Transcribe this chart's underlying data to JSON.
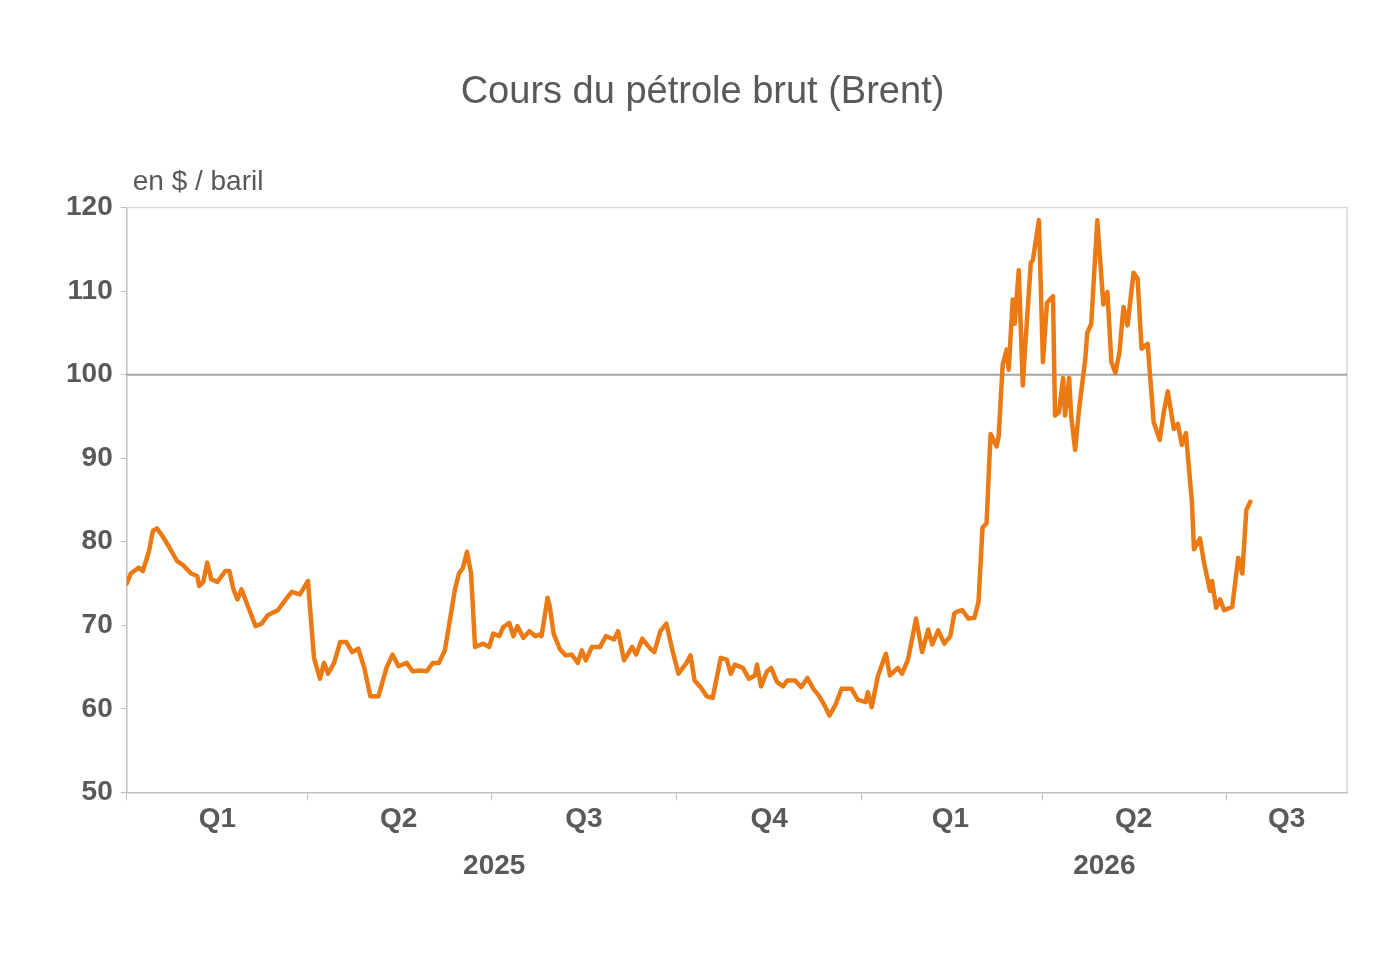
{
  "chart_data": {
    "type": "line",
    "title": "Cours du pétrole brut (Brent)",
    "ylabel": "en $ / baril",
    "color": "#ec7a14",
    "legend": false,
    "xlim": [
      "2025-01-01",
      "2026-08-30"
    ],
    "ylim": [
      50,
      120
    ],
    "yticks": [
      50,
      60,
      70,
      80,
      90,
      100,
      110,
      120
    ],
    "xticks": [
      {
        "value": "2025-01-01",
        "label": null
      },
      {
        "value": "2025-02-15",
        "label": "Q1"
      },
      {
        "value": "2025-04-01",
        "label": null
      },
      {
        "value": "2025-05-16",
        "label": "Q2"
      },
      {
        "value": "2025-07-01",
        "label": null
      },
      {
        "value": "2025-08-16",
        "label": "Q3"
      },
      {
        "value": "2025-10-01",
        "label": null
      },
      {
        "value": "2025-11-16",
        "label": "Q4"
      },
      {
        "value": "2026-01-01",
        "label": null
      },
      {
        "value": "2026-02-14",
        "label": "Q1"
      },
      {
        "value": "2026-04-01",
        "label": null
      },
      {
        "value": "2026-05-16",
        "label": "Q2"
      },
      {
        "value": "2026-07-01",
        "label": null
      },
      {
        "value": "2026-07-31",
        "label": "Q3"
      }
    ],
    "annotations": [
      "2025",
      "2026"
    ],
    "ref_lines": [
      {
        "axis": "y",
        "value": 100,
        "color": "#a6a6a6"
      }
    ],
    "x": [
      "2025-01-01",
      "2025-01-03",
      "2025-01-07",
      "2025-01-09",
      "2025-01-12",
      "2025-01-14",
      "2025-01-16",
      "2025-01-19",
      "2025-01-22",
      "2025-01-26",
      "2025-01-29",
      "2025-02-02",
      "2025-02-05",
      "2025-02-06",
      "2025-02-08",
      "2025-02-10",
      "2025-02-12",
      "2025-02-15",
      "2025-02-19",
      "2025-02-21",
      "2025-02-23",
      "2025-02-25",
      "2025-02-27",
      "2025-03-02",
      "2025-03-06",
      "2025-03-09",
      "2025-03-12",
      "2025-03-17",
      "2025-03-21",
      "2025-03-24",
      "2025-03-28",
      "2025-04-01",
      "2025-04-04",
      "2025-04-07",
      "2025-04-09",
      "2025-04-11",
      "2025-04-14",
      "2025-04-17",
      "2025-04-20",
      "2025-04-23",
      "2025-04-26",
      "2025-04-29",
      "2025-05-02",
      "2025-05-06",
      "2025-05-10",
      "2025-05-13",
      "2025-05-16",
      "2025-05-20",
      "2025-05-23",
      "2025-05-27",
      "2025-05-30",
      "2025-06-02",
      "2025-06-05",
      "2025-06-08",
      "2025-06-10",
      "2025-06-13",
      "2025-06-15",
      "2025-06-17",
      "2025-06-19",
      "2025-06-21",
      "2025-06-23",
      "2025-06-27",
      "2025-06-30",
      "2025-07-02",
      "2025-07-05",
      "2025-07-07",
      "2025-07-10",
      "2025-07-12",
      "2025-07-14",
      "2025-07-17",
      "2025-07-20",
      "2025-07-23",
      "2025-07-25",
      "2025-07-26",
      "2025-07-29",
      "2025-07-30",
      "2025-08-01",
      "2025-08-04",
      "2025-08-07",
      "2025-08-10",
      "2025-08-13",
      "2025-08-15",
      "2025-08-17",
      "2025-08-20",
      "2025-08-24",
      "2025-08-27",
      "2025-08-31",
      "2025-09-02",
      "2025-09-05",
      "2025-09-09",
      "2025-09-11",
      "2025-09-14",
      "2025-09-18",
      "2025-09-20",
      "2025-09-23",
      "2025-09-26",
      "2025-09-29",
      "2025-10-02",
      "2025-10-06",
      "2025-10-08",
      "2025-10-10",
      "2025-10-13",
      "2025-10-16",
      "2025-10-19",
      "2025-10-23",
      "2025-10-26",
      "2025-10-28",
      "2025-10-30",
      "2025-11-03",
      "2025-11-06",
      "2025-11-09",
      "2025-11-10",
      "2025-11-12",
      "2025-11-15",
      "2025-11-17",
      "2025-11-20",
      "2025-11-23",
      "2025-11-25",
      "2025-11-29",
      "2025-12-02",
      "2025-12-05",
      "2025-12-08",
      "2025-12-11",
      "2025-12-14",
      "2025-12-16",
      "2025-12-19",
      "2025-12-22",
      "2025-12-27",
      "2025-12-30",
      "2026-01-03",
      "2026-01-04",
      "2026-01-06",
      "2026-01-09",
      "2026-01-13",
      "2026-01-15",
      "2026-01-19",
      "2026-01-21",
      "2026-01-24",
      "2026-01-28",
      "2026-01-31",
      "2026-02-03",
      "2026-02-05",
      "2026-02-08",
      "2026-02-11",
      "2026-02-14",
      "2026-02-16",
      "2026-02-17",
      "2026-02-20",
      "2026-02-23",
      "2026-02-26",
      "2026-02-28",
      "2026-03-02",
      "2026-03-04",
      "2026-03-06",
      "2026-03-09",
      "2026-03-10",
      "2026-03-12",
      "2026-03-14",
      "2026-03-15",
      "2026-03-17",
      "2026-03-18",
      "2026-03-20",
      "2026-03-22",
      "2026-03-23",
      "2026-03-26",
      "2026-03-27",
      "2026-03-30",
      "2026-04-01",
      "2026-04-03",
      "2026-04-06",
      "2026-04-07",
      "2026-04-09",
      "2026-04-11",
      "2026-04-12",
      "2026-04-14",
      "2026-04-15",
      "2026-04-17",
      "2026-04-19",
      "2026-04-22",
      "2026-04-23",
      "2026-04-25",
      "2026-04-27",
      "2026-04-28",
      "2026-05-01",
      "2026-05-03",
      "2026-05-05",
      "2026-05-07",
      "2026-05-09",
      "2026-05-11",
      "2026-05-13",
      "2026-05-16",
      "2026-05-18",
      "2026-05-20",
      "2026-05-23",
      "2026-05-26",
      "2026-05-29",
      "2026-05-31",
      "2026-06-02",
      "2026-06-05",
      "2026-06-07",
      "2026-06-09",
      "2026-06-11",
      "2026-06-14",
      "2026-06-15",
      "2026-06-18",
      "2026-06-20",
      "2026-06-23",
      "2026-06-24",
      "2026-06-26",
      "2026-06-28",
      "2026-06-30",
      "2026-07-04",
      "2026-07-07",
      "2026-07-09",
      "2026-07-11",
      "2026-07-13"
    ],
    "values": [
      75.0,
      76.2,
      76.9,
      76.5,
      78.8,
      81.3,
      81.6,
      80.6,
      79.4,
      77.7,
      77.2,
      76.2,
      75.9,
      74.7,
      75.2,
      77.5,
      75.5,
      75.2,
      76.5,
      76.5,
      74.3,
      73.1,
      74.3,
      72.4,
      69.9,
      70.2,
      71.2,
      71.8,
      73.1,
      74.0,
      73.7,
      75.3,
      66.1,
      63.6,
      65.5,
      64.2,
      65.5,
      68.0,
      68.0,
      66.8,
      67.2,
      64.9,
      61.5,
      61.5,
      64.9,
      66.5,
      65.1,
      65.5,
      64.5,
      64.6,
      64.5,
      65.5,
      65.5,
      67.0,
      69.9,
      74.3,
      76.2,
      76.9,
      78.8,
      76.2,
      67.4,
      67.8,
      67.4,
      69.0,
      68.7,
      69.8,
      70.3,
      68.7,
      69.9,
      68.5,
      69.3,
      68.7,
      68.9,
      68.7,
      73.3,
      72.4,
      69.0,
      67.2,
      66.4,
      66.5,
      65.5,
      67.0,
      65.8,
      67.4,
      67.4,
      68.7,
      68.3,
      69.3,
      65.8,
      67.4,
      66.5,
      68.4,
      67.2,
      66.8,
      69.3,
      70.2,
      67.0,
      64.2,
      65.5,
      66.4,
      63.4,
      62.6,
      61.5,
      61.3,
      66.1,
      65.9,
      64.2,
      65.3,
      64.9,
      63.6,
      64.0,
      65.3,
      62.7,
      64.5,
      64.9,
      63.2,
      62.7,
      63.4,
      63.4,
      62.6,
      63.7,
      62.4,
      61.5,
      60.2,
      59.2,
      60.5,
      62.4,
      62.4,
      61.1,
      60.8,
      62.0,
      60.2,
      63.9,
      66.6,
      64.0,
      64.9,
      64.2,
      65.9,
      70.8,
      66.8,
      69.5,
      67.7,
      69.4,
      67.8,
      68.7,
      71.4,
      71.6,
      71.8,
      70.8,
      70.9,
      72.8,
      81.7,
      82.2,
      92.9,
      91.4,
      92.6,
      101.2,
      103.0,
      100.6,
      109.0,
      106.1,
      112.5,
      98.7,
      102.7,
      113.4,
      113.7,
      118.5,
      101.5,
      108.6,
      109.4,
      95.1,
      95.5,
      99.6,
      95.1,
      99.6,
      95.1,
      91.0,
      96.0,
      101.8,
      105.0,
      106.1,
      114.4,
      118.5,
      108.4,
      109.9,
      101.5,
      100.2,
      102.7,
      108.1,
      105.9,
      112.2,
      111.5,
      103.1,
      103.7,
      94.3,
      92.2,
      95.5,
      98.0,
      93.5,
      94.1,
      91.6,
      93.0,
      84.7,
      79.1,
      80.4,
      77.5,
      74.1,
      75.3,
      72.1,
      73.1,
      71.8,
      72.2,
      78.1,
      76.2,
      83.8,
      84.8
    ]
  }
}
